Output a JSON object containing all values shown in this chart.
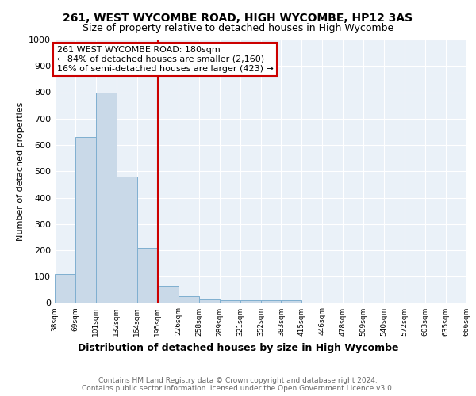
{
  "title": "261, WEST WYCOMBE ROAD, HIGH WYCOMBE, HP12 3AS",
  "subtitle": "Size of property relative to detached houses in High Wycombe",
  "xlabel": "Distribution of detached houses by size in High Wycombe",
  "ylabel": "Number of detached properties",
  "tick_labels": [
    "38sqm",
    "69sqm",
    "101sqm",
    "132sqm",
    "164sqm",
    "195sqm",
    "226sqm",
    "258sqm",
    "289sqm",
    "321sqm",
    "352sqm",
    "383sqm",
    "415sqm",
    "446sqm",
    "478sqm",
    "509sqm",
    "540sqm",
    "572sqm",
    "603sqm",
    "635sqm",
    "666sqm"
  ],
  "bar_heights": [
    110,
    630,
    800,
    480,
    210,
    65,
    27,
    15,
    10,
    10,
    10,
    10,
    0,
    0,
    0,
    0,
    0,
    0,
    0,
    0
  ],
  "bar_color": "#c9d9e8",
  "bar_edge_color": "#7fafd0",
  "vline_color": "#cc0000",
  "annotation_text": "261 WEST WYCOMBE ROAD: 180sqm\n← 84% of detached houses are smaller (2,160)\n16% of semi-detached houses are larger (423) →",
  "annotation_box_color": "#ffffff",
  "annotation_box_edge_color": "#cc0000",
  "ylim": [
    0,
    1000
  ],
  "yticks": [
    0,
    100,
    200,
    300,
    400,
    500,
    600,
    700,
    800,
    900,
    1000
  ],
  "footer_text": "Contains HM Land Registry data © Crown copyright and database right 2024.\nContains public sector information licensed under the Open Government Licence v3.0.",
  "bg_color": "#eaf1f8",
  "fig_bg_color": "#ffffff",
  "grid_color": "#ffffff"
}
